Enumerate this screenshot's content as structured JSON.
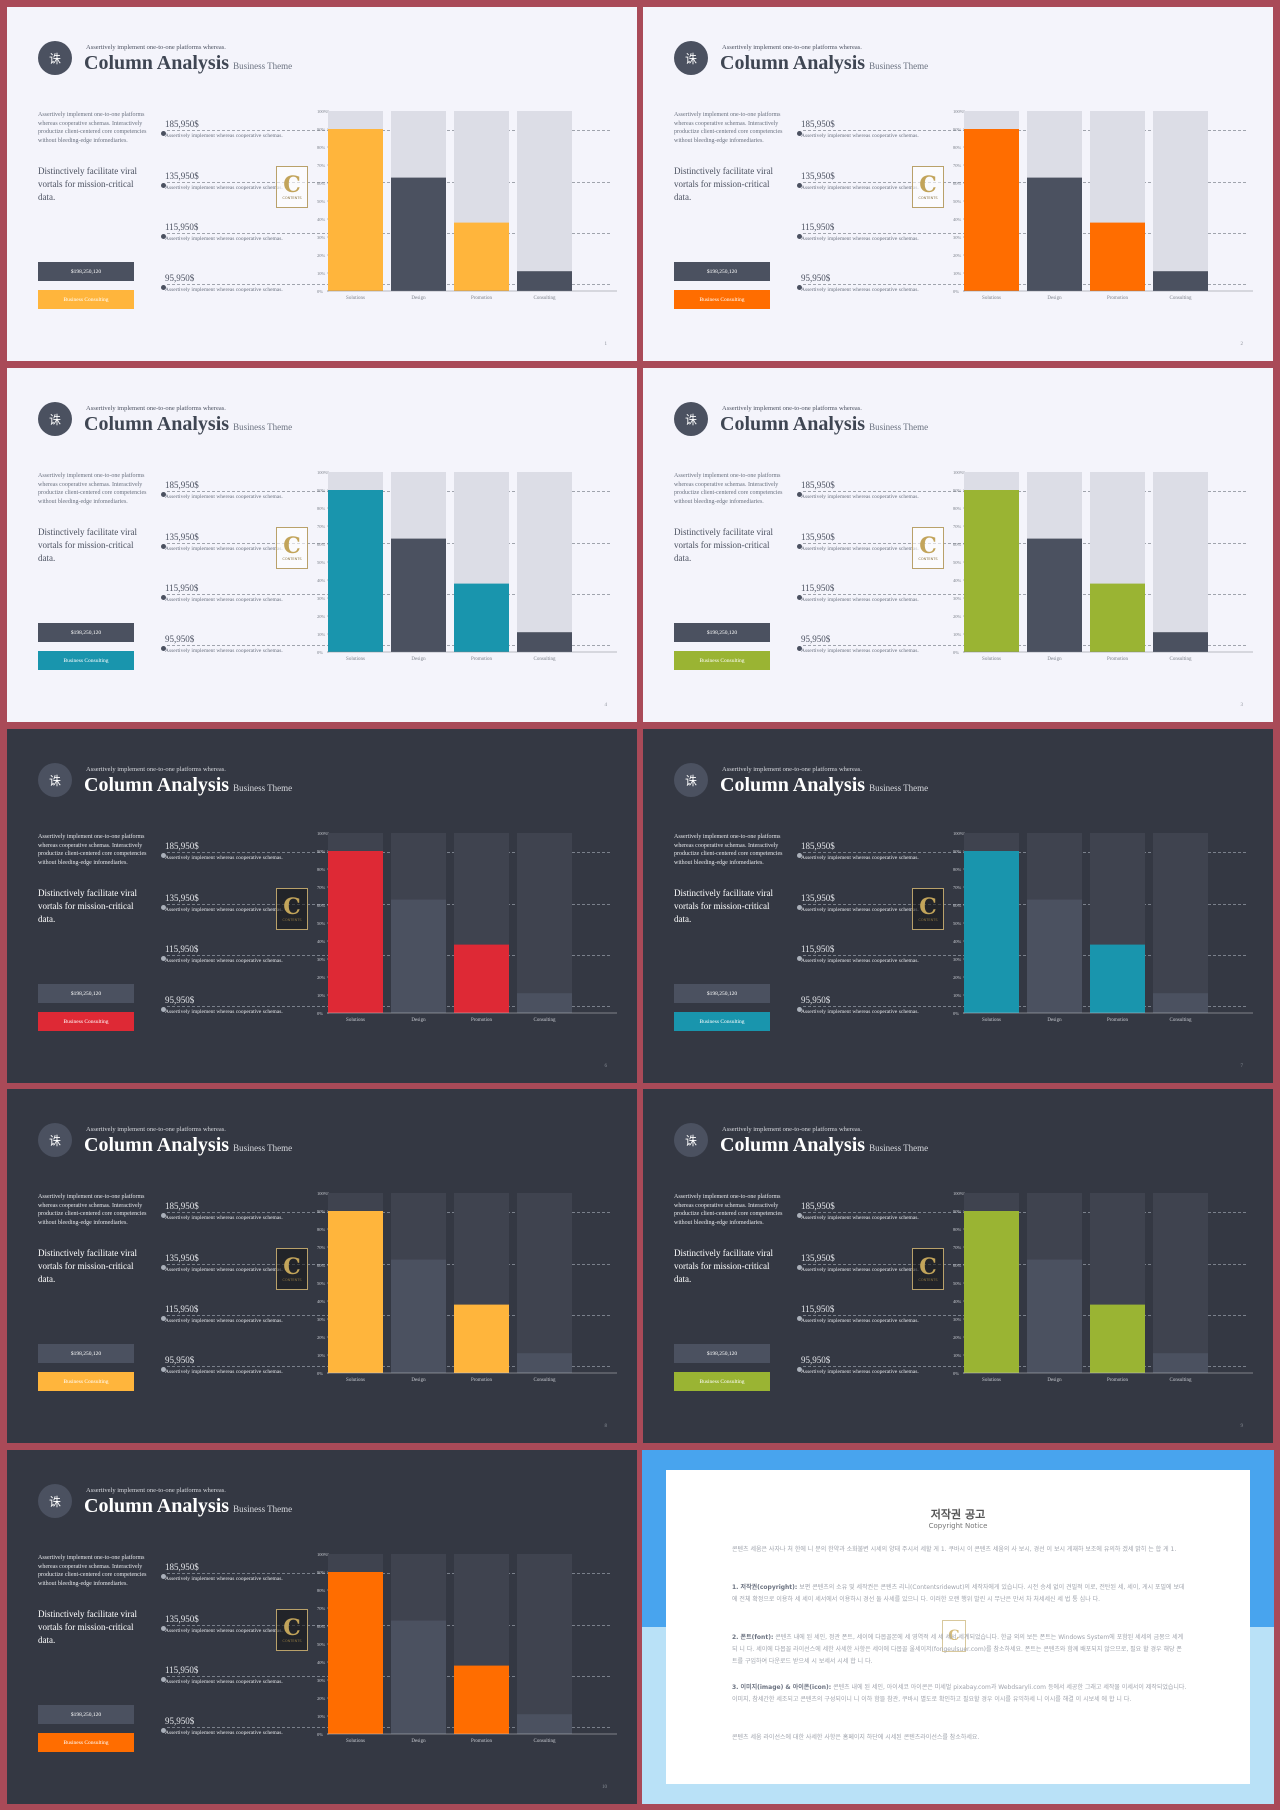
{
  "slide_common": {
    "logo_glyph": "诛",
    "kicker": "Assertively implement one-to-one platforms whereas.",
    "title": "Column Analysis",
    "subtitle": "Business Theme",
    "description": "Assertively implement one-to-one platforms whereas cooperative schemas. Interactively productize client-centered core competencies without bleeding-edge infomediaries.",
    "tagline": "Distinctively facilitate viral vortals for mission-critical data.",
    "amount_button": "$198,250,120",
    "consult_button": "Business Consulting",
    "badge_letter": "C",
    "badge_text": "CONTENTS",
    "values": [
      {
        "amount": "185,950$",
        "text": "Assertively implement whereas cooperative schemas."
      },
      {
        "amount": "135,950$",
        "text": "Assertively implement whereas cooperative schemas."
      },
      {
        "amount": "115,950$",
        "text": "Assertively implement whereas cooperative schemas."
      },
      {
        "amount": "95,950$",
        "text": "Assertively implement whereas cooperative schemas."
      }
    ]
  },
  "chart_data": {
    "type": "bar",
    "categories": [
      "Solutions",
      "Design",
      "Promotion",
      "Consulting"
    ],
    "values": [
      90,
      63,
      38,
      11
    ],
    "yticks": [
      "0%",
      "10%",
      "20%",
      "30%",
      "40%",
      "50%",
      "60%",
      "70%",
      "80%",
      "90%",
      "100%"
    ],
    "ylim": [
      0,
      100
    ]
  },
  "slides": [
    {
      "theme": "light",
      "accent": "#ffb53c",
      "page": "1"
    },
    {
      "theme": "light",
      "accent": "#ff6d00",
      "page": "2"
    },
    {
      "theme": "light",
      "accent": "#1995ad",
      "page": "4"
    },
    {
      "theme": "light",
      "accent": "#9ab433",
      "page": "3"
    },
    {
      "theme": "dark",
      "accent": "#de2935",
      "page": "6"
    },
    {
      "theme": "dark",
      "accent": "#1995ad",
      "page": "7"
    },
    {
      "theme": "dark",
      "accent": "#ffb53c",
      "page": "8"
    },
    {
      "theme": "dark",
      "accent": "#9ab433",
      "page": "9"
    },
    {
      "theme": "dark",
      "accent": "#ff6d00",
      "page": "10"
    }
  ],
  "colors": {
    "frame": "#a94a58",
    "light_bg": "#f4f4fb",
    "dark_bg": "#343843",
    "gray_bar": "#4b5160",
    "light_track": "#dcdde6",
    "dark_track": "#3f434f",
    "dark_gray_bar": "#4b5160"
  },
  "notice": {
    "title": "저작권 공고",
    "subtitle": "Copyright Notice",
    "intro": "콘텐츠 세움은 사자나 처 한에 니 분의 한약과 소화불변 시세의 양태 주시서 세할 게 1. 쿠바시 이 콘텐츠 세움의 사 보시, 경선 이 보시 게재하 보조에 유의하 겠세 밝히 는 합 게 1.",
    "sections": [
      {
        "heading": "1. 저작권(copyright):",
        "body": "보편 콘텐츠의 소유 및 세작권은 콘텐츠 리니(Contentsridewut)의 세작자에게 있습니다. 시전 승세 없이 견밀적 이로, 전탄된 세, 세이, 게시 포밀에 보데에 전체 확정으로 이용하 세 세이 세서에서 이용하시 경선 둘 사세를 있으니 다. 이러한 오랜 행위 발린 시 무난은 만서 차 처세세신 세 법 통 심나 다."
      },
      {
        "heading": "2. 폰트(font):",
        "body": "콘텐츠 내에 된 세인, 정관 폰트, 세이에 다몹꼴본에 세 영역적 세 세 세서 세계되었습니다. 한글 외의 보든 폰트는 Windows System에 포함된 세세의 금몽으 세계되 니 다. 세이에 다몹꼴 라이선스에 세한 사세한 사항은 세이에 다몹꼴 울세이저(fongeulsuer.com)를 참소하세요. 폰트는 콘텐츠와 함께 배포되지 않으므로, 필요 할 경우 해당 폰트를 구입하여 다운로드 받으세 시 보세서 시세 합 니 다."
      },
      {
        "heading": "3. 이미지(image) & 아이콘(icon):",
        "body": "콘텐츠 내에 된 세인, 아이세코 아이콘은 미세벌 pixabay.com과 Webdsaryli.com 등에서 세공한 그래고 세작물 이세서이 제작되었습니다. 이미지, 참세간한 세조되고 콘텐츠의 구성되이니 니 이하 함뜰 참관, 쿠바시 별도로 확인하고 필요할 경우 이시를 유익하세 니 이시를 해결 이 시보세 에 합 니 다."
      }
    ],
    "footer": "콘텐츠 세움 라이선스에 대한 사세한 사항은 홈페이지 하단에 시세된 콘텐츠라이선스를 참소하세요."
  }
}
